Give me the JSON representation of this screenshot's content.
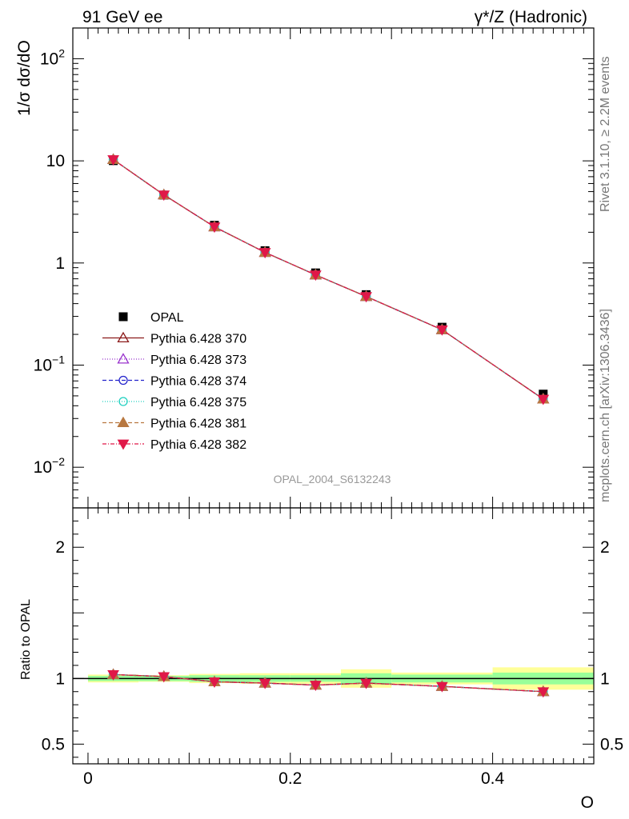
{
  "header": {
    "left": "91 GeV ee",
    "right": "γ*/Z (Hadronic)"
  },
  "side_texts": {
    "rivet": "Rivet 3.1.10, ≥ 2.2M events",
    "mcplots": "mcplots.cern.ch [arXiv:1306.3436]"
  },
  "analysis_label": "OPAL_2004_S6132243",
  "chart_data": [
    {
      "type": "line",
      "panel": "main",
      "ylabel": "1/σ dσ/dO",
      "yscale": "log",
      "ylim": [
        0.004,
        200
      ],
      "xlim": [
        -0.015,
        0.5
      ],
      "yticks": [
        {
          "value": 100,
          "base": "10",
          "exp": "2"
        },
        {
          "value": 10,
          "label": "10"
        },
        {
          "value": 1,
          "label": "1"
        },
        {
          "value": 0.1,
          "base": "10",
          "exp": "−1"
        },
        {
          "value": 0.01,
          "base": "10",
          "exp": "−2"
        }
      ],
      "x": [
        0.025,
        0.075,
        0.125,
        0.175,
        0.225,
        0.275,
        0.35,
        0.45
      ],
      "x_bins": [
        [
          0.0,
          0.05
        ],
        [
          0.05,
          0.1
        ],
        [
          0.1,
          0.15
        ],
        [
          0.15,
          0.2
        ],
        [
          0.2,
          0.25
        ],
        [
          0.25,
          0.3
        ],
        [
          0.3,
          0.4
        ],
        [
          0.4,
          0.5
        ]
      ],
      "legend_position": "middle-left",
      "reference": {
        "name": "OPAL",
        "values": [
          10.05,
          4.62,
          2.34,
          1.32,
          0.8,
          0.49,
          0.235,
          0.052
        ]
      },
      "series": [
        {
          "name": "Pythia 6.428 370",
          "color": "#8b1a1a",
          "dash": "",
          "marker": "triangle-open",
          "values": [
            10.3,
            4.65,
            2.26,
            1.27,
            0.765,
            0.47,
            0.222,
            0.0465
          ]
        },
        {
          "name": "Pythia 6.428 373",
          "color": "#9933cc",
          "dash": "1,2",
          "marker": "triangle-open",
          "values": [
            10.3,
            4.65,
            2.26,
            1.27,
            0.765,
            0.47,
            0.222,
            0.0465
          ]
        },
        {
          "name": "Pythia 6.428 374",
          "color": "#2222cc",
          "dash": "5,3",
          "marker": "circle-open",
          "values": [
            10.3,
            4.65,
            2.26,
            1.27,
            0.765,
            0.47,
            0.222,
            0.0465
          ]
        },
        {
          "name": "Pythia 6.428 375",
          "color": "#20d0c0",
          "dash": "1,2",
          "marker": "circle-open",
          "values": [
            10.3,
            4.65,
            2.26,
            1.27,
            0.765,
            0.47,
            0.222,
            0.0465
          ]
        },
        {
          "name": "Pythia 6.428 381",
          "color": "#b87840",
          "dash": "5,3",
          "marker": "triangle-filled",
          "values": [
            10.3,
            4.65,
            2.26,
            1.27,
            0.765,
            0.47,
            0.222,
            0.0465
          ]
        },
        {
          "name": "Pythia 6.428 382",
          "color": "#e01848",
          "dash": "5,2,1,2",
          "marker": "triangle-down-filled",
          "values": [
            10.3,
            4.65,
            2.26,
            1.27,
            0.765,
            0.47,
            0.222,
            0.0465
          ]
        }
      ]
    },
    {
      "type": "line",
      "panel": "ratio",
      "ylabel": "Ratio to OPAL",
      "xlabel": "O",
      "ylim": [
        0.35,
        2.3
      ],
      "xlim": [
        -0.015,
        0.5
      ],
      "yticks": [
        {
          "value": 2,
          "label": "2"
        },
        {
          "value": 1,
          "label": "1"
        },
        {
          "value": 0.5,
          "label": "0.5"
        }
      ],
      "xticks": [
        {
          "value": 0,
          "label": "0"
        },
        {
          "value": 0.2,
          "label": "0.2"
        },
        {
          "value": 0.4,
          "label": "0.4"
        }
      ],
      "x": [
        0.025,
        0.075,
        0.125,
        0.175,
        0.225,
        0.275,
        0.35,
        0.45
      ],
      "bands": {
        "stat": [
          0.02,
          0.02,
          0.025,
          0.025,
          0.025,
          0.04,
          0.03,
          0.045
        ],
        "total": [
          0.03,
          0.025,
          0.035,
          0.04,
          0.04,
          0.07,
          0.045,
          0.085
        ]
      },
      "values": [
        1.03,
        1.015,
        0.975,
        0.965,
        0.95,
        0.965,
        0.94,
        0.9
      ]
    }
  ]
}
